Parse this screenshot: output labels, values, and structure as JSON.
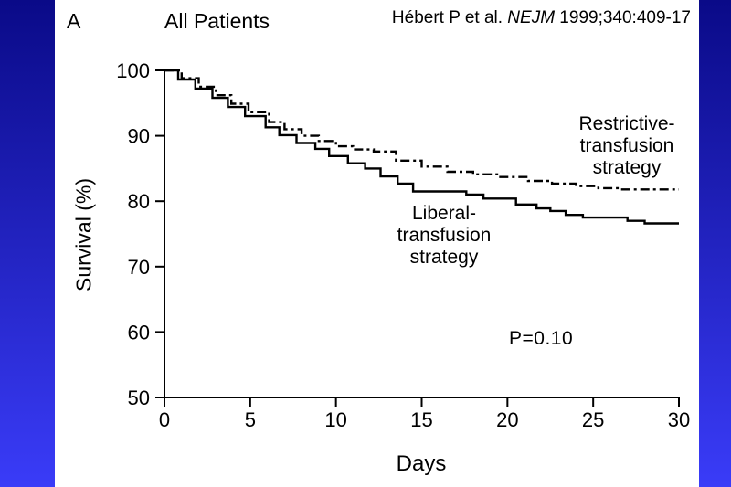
{
  "slide": {
    "panel_label": "A",
    "citation": {
      "author_part": "Hébert P et al. ",
      "journal": "NEJM",
      "ref_part": " 1999;340:409-17"
    }
  },
  "colors": {
    "background_top": "#0a0a88",
    "background_bottom": "#3a3cf8",
    "panel_background": "#ffffff",
    "line_color": "#000000",
    "text_color": "#000000"
  },
  "chart_data": {
    "type": "line",
    "subtype": "kaplan-meier-step",
    "title": "All Patients",
    "xlabel": "Days",
    "ylabel": "Survival (%)",
    "xlim": [
      0,
      30
    ],
    "ylim": [
      50,
      100
    ],
    "xticks": [
      0,
      5,
      10,
      15,
      20,
      25,
      30
    ],
    "yticks": [
      50,
      60,
      70,
      80,
      90,
      100
    ],
    "grid": false,
    "legend_position": "direct-labels-on-plot",
    "annotation": "P=0.10",
    "series": [
      {
        "id": "restrictive",
        "name": "Restrictive-transfusion strategy",
        "style": "dash-dot",
        "final_value_pct": 82,
        "points": [
          [
            0,
            100
          ],
          [
            1.0,
            98.8
          ],
          [
            2.0,
            97.5
          ],
          [
            3.0,
            96.2
          ],
          [
            3.9,
            94.9
          ],
          [
            4.9,
            93.6
          ],
          [
            6.1,
            92.1
          ],
          [
            7.0,
            91.0
          ],
          [
            8.0,
            90.0
          ],
          [
            9.0,
            89.2
          ],
          [
            10.0,
            88.4
          ],
          [
            11.0,
            87.9
          ],
          [
            12.2,
            87.6
          ],
          [
            13.5,
            86.2
          ],
          [
            15.0,
            85.3
          ],
          [
            16.5,
            84.5
          ],
          [
            18.0,
            84.1
          ],
          [
            19.5,
            83.7
          ],
          [
            21.2,
            83.1
          ],
          [
            22.6,
            82.7
          ],
          [
            24.0,
            82.3
          ],
          [
            25.3,
            82.0
          ],
          [
            26.5,
            81.8
          ],
          [
            30,
            81.8
          ]
        ]
      },
      {
        "id": "liberal",
        "name": "Liberal-transfusion strategy",
        "style": "solid",
        "final_value_pct": 77,
        "points": [
          [
            0,
            100
          ],
          [
            0.8,
            98.6
          ],
          [
            1.8,
            97.2
          ],
          [
            2.8,
            95.8
          ],
          [
            3.7,
            94.4
          ],
          [
            4.7,
            93.0
          ],
          [
            5.9,
            91.3
          ],
          [
            6.7,
            90.1
          ],
          [
            7.7,
            88.9
          ],
          [
            8.8,
            88.0
          ],
          [
            9.6,
            86.9
          ],
          [
            10.7,
            85.8
          ],
          [
            11.7,
            85.0
          ],
          [
            12.6,
            83.8
          ],
          [
            13.6,
            82.7
          ],
          [
            14.5,
            81.5
          ],
          [
            17.6,
            81.0
          ],
          [
            18.6,
            80.4
          ],
          [
            20.5,
            79.5
          ],
          [
            21.7,
            78.9
          ],
          [
            22.5,
            78.5
          ],
          [
            23.4,
            77.9
          ],
          [
            24.4,
            77.5
          ],
          [
            27.0,
            77.0
          ],
          [
            28.0,
            76.6
          ],
          [
            30,
            76.6
          ]
        ]
      }
    ],
    "labels": {
      "restrictive": [
        "Restrictive-",
        "transfusion",
        "strategy"
      ],
      "liberal": [
        "Liberal-",
        "transfusion",
        "strategy"
      ]
    }
  }
}
